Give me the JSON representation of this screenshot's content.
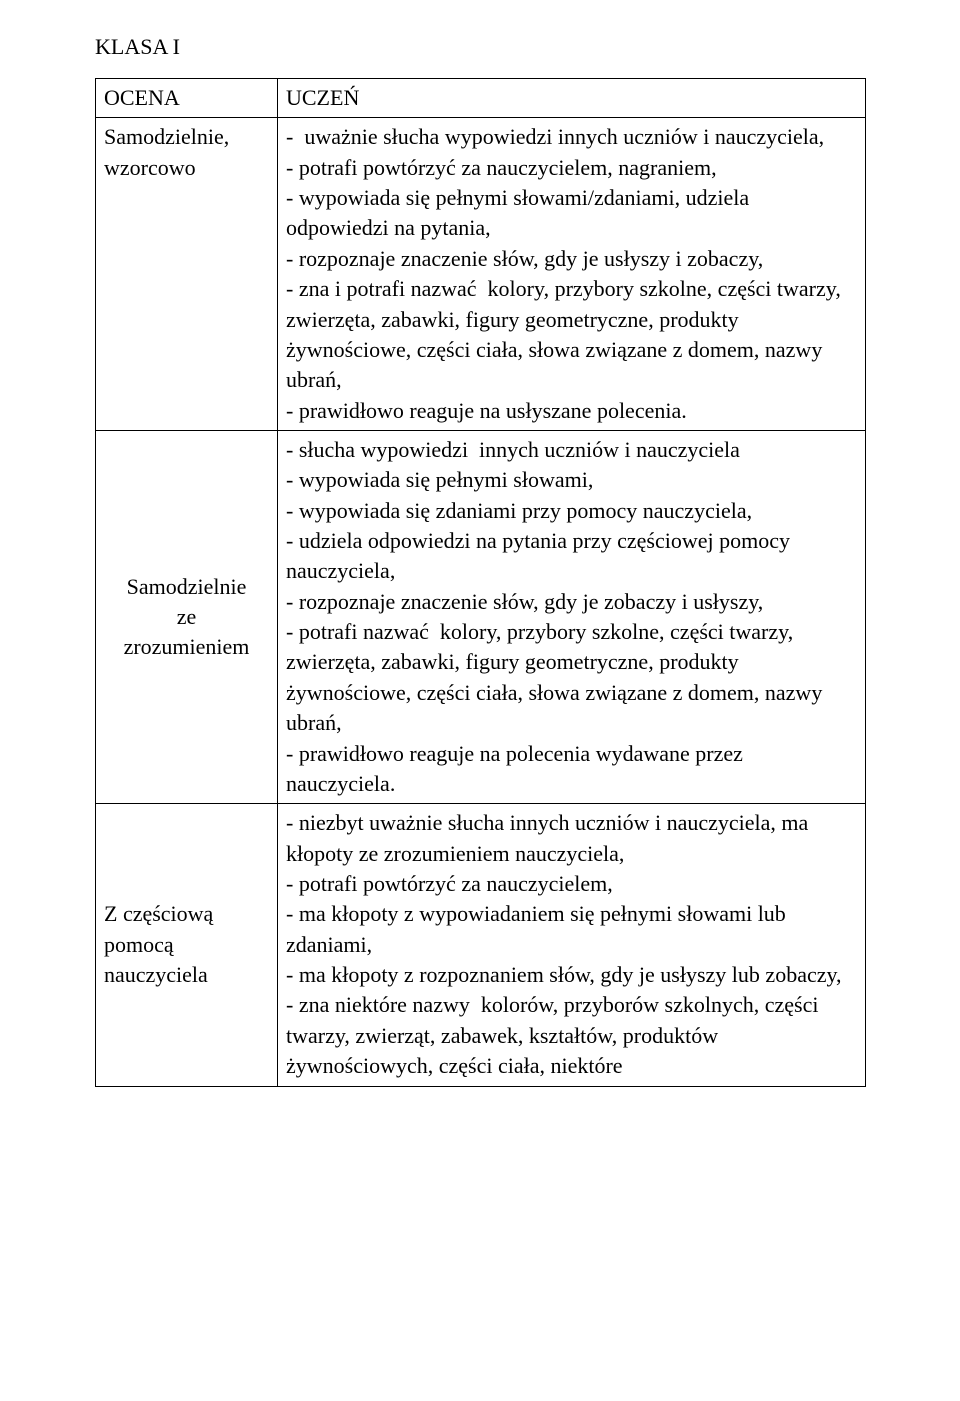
{
  "title": "KLASA I",
  "headers": {
    "left": "OCENA",
    "right": "UCZEŃ"
  },
  "rows": [
    {
      "label_lines": [
        "Samodzielnie,",
        "wzorcowo"
      ],
      "label_centered": false,
      "desc": "-  uważnie słucha wypowiedzi innych uczniów i nauczyciela,\n- potrafi powtórzyć za nauczycielem, nagraniem,\n- wypowiada się pełnymi słowami/zdaniami, udziela odpowiedzi na pytania,\n- rozpoznaje znaczenie słów, gdy je usłyszy i zobaczy,\n- zna i potrafi nazwać  kolory, przybory szkolne, części twarzy, zwierzęta, zabawki, figury geometryczne, produkty żywnościowe, części ciała, słowa związane z domem, nazwy ubrań,\n- prawidłowo reaguje na usłyszane polecenia."
    },
    {
      "label_lines": [
        "Samodzielnie",
        "ze",
        "zrozumieniem"
      ],
      "label_centered": true,
      "desc": "- słucha wypowiedzi  innych uczniów i nauczyciela\n- wypowiada się pełnymi słowami,\n- wypowiada się zdaniami przy pomocy nauczyciela,\n- udziela odpowiedzi na pytania przy częściowej pomocy nauczyciela,\n- rozpoznaje znaczenie słów, gdy je zobaczy i usłyszy,\n- potrafi nazwać  kolory, przybory szkolne, części twarzy, zwierzęta, zabawki, figury geometryczne, produkty żywnościowe, części ciała, słowa związane z domem, nazwy ubrań,\n- prawidłowo reaguje na polecenia wydawane przez nauczyciela."
    },
    {
      "label_lines": [
        "Z częściową",
        "pomocą",
        "nauczyciela"
      ],
      "label_centered": false,
      "label_vcenter": true,
      "desc": "- niezbyt uważnie słucha innych uczniów i nauczyciela, ma kłopoty ze zrozumieniem nauczyciela,\n- potrafi powtórzyć za nauczycielem,\n- ma kłopoty z wypowiadaniem się pełnymi słowami lub zdaniami,\n- ma kłopoty z rozpoznaniem słów, gdy je usłyszy lub zobaczy,\n- zna niektóre nazwy  kolorów, przyborów szkolnych, części  twarzy, zwierząt, zabawek, kształtów, produktów  żywnościowych, części ciała, niektóre"
    }
  ]
}
